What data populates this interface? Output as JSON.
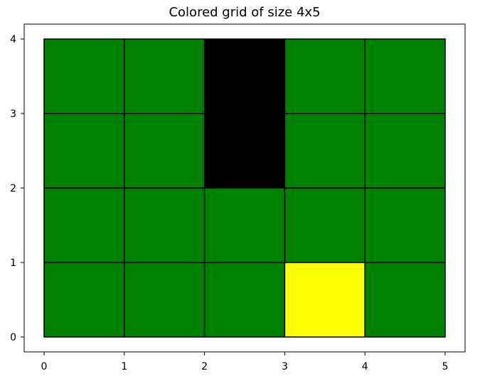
{
  "chart_data": {
    "type": "heatmap",
    "title": "Colored grid of size 4x5",
    "xlabel": "",
    "ylabel": "",
    "xlim": [
      0,
      5
    ],
    "ylim": [
      0,
      4
    ],
    "x_ticks": [
      "0",
      "1",
      "2",
      "3",
      "4",
      "5"
    ],
    "y_ticks": [
      "0",
      "1",
      "2",
      "3",
      "4"
    ],
    "grid": false,
    "cell_border_color": "#000000",
    "colors": {
      "G": "#008000",
      "K": "#000000",
      "Y": "#ffff00"
    },
    "rows_top_to_bottom": [
      [
        "G",
        "G",
        "K",
        "G",
        "G"
      ],
      [
        "G",
        "G",
        "K",
        "G",
        "G"
      ],
      [
        "G",
        "G",
        "G",
        "G",
        "G"
      ],
      [
        "G",
        "G",
        "G",
        "Y",
        "G"
      ]
    ]
  }
}
